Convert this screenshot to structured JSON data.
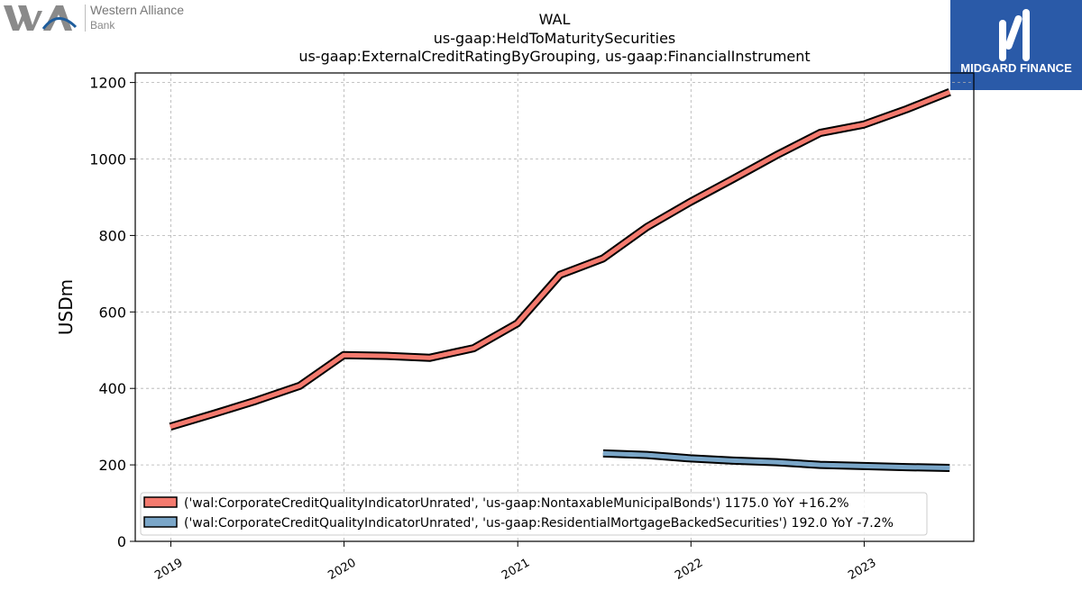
{
  "logos": {
    "left_name_line1": "Western Alliance",
    "left_name_line2": "Bank",
    "right_name": "MIDGARD FINANCE",
    "right_bg_color": "#2a5aa8"
  },
  "chart_data": {
    "type": "line",
    "title": "WAL",
    "subtitle_lines": [
      "us-gaap:HeldToMaturitySecurities",
      "us-gaap:ExternalCreditRatingByGrouping, us-gaap:FinancialInstrument"
    ],
    "xlabel": "",
    "ylabel": "USDm",
    "ylim": [
      0,
      1225
    ],
    "xlim": [
      "2018-10-18",
      "2023-08-20"
    ],
    "yticks": [
      0,
      200,
      400,
      600,
      800,
      1000,
      1200
    ],
    "xticks": [
      "2019-01-01",
      "2020-01-01",
      "2021-01-01",
      "2022-01-01",
      "2023-01-01"
    ],
    "xtick_labels": [
      "2019",
      "2020",
      "2021",
      "2022",
      "2023"
    ],
    "grid": true,
    "legend_position": "lower-left",
    "series": [
      {
        "name": "('wal:CorporateCreditQualityIndicatorUnrated', 'us-gaap:NontaxableMunicipalBonds') 1175.0 YoY +16.2%",
        "color": "#f47a6e",
        "points": [
          [
            "2018-12-31",
            300
          ],
          [
            "2019-03-31",
            333
          ],
          [
            "2019-06-30",
            368
          ],
          [
            "2019-09-30",
            407
          ],
          [
            "2019-12-31",
            487
          ],
          [
            "2020-03-31",
            485
          ],
          [
            "2020-06-30",
            480
          ],
          [
            "2020-09-30",
            505
          ],
          [
            "2020-12-31",
            570
          ],
          [
            "2021-03-31",
            697
          ],
          [
            "2021-06-30",
            740
          ],
          [
            "2021-09-30",
            822
          ],
          [
            "2021-12-31",
            888
          ],
          [
            "2022-03-31",
            948
          ],
          [
            "2022-06-30",
            1010
          ],
          [
            "2022-09-30",
            1068
          ],
          [
            "2022-12-31",
            1090
          ],
          [
            "2023-03-31",
            1130
          ],
          [
            "2023-06-30",
            1175
          ]
        ]
      },
      {
        "name": "('wal:CorporateCreditQualityIndicatorUnrated', 'us-gaap:ResidentialMortgageBackedSecurities') 192.0 YoY -7.2%",
        "color": "#7aa6c8",
        "points": [
          [
            "2021-06-30",
            230
          ],
          [
            "2021-09-30",
            226
          ],
          [
            "2021-12-31",
            217
          ],
          [
            "2022-03-31",
            211
          ],
          [
            "2022-06-30",
            207
          ],
          [
            "2022-09-30",
            200
          ],
          [
            "2022-12-31",
            197
          ],
          [
            "2023-03-31",
            194
          ],
          [
            "2023-06-30",
            192
          ]
        ]
      }
    ]
  }
}
